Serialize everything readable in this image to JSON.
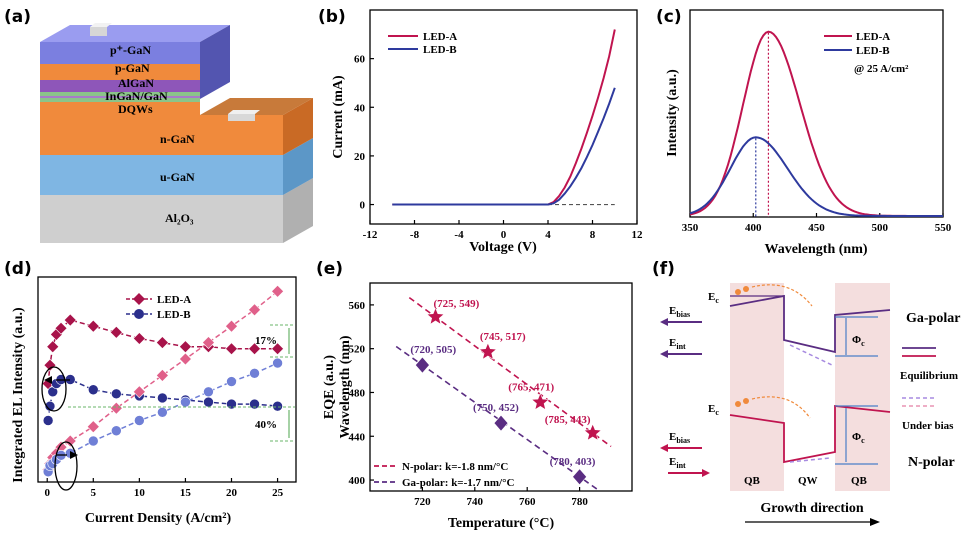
{
  "panels": {
    "a": {
      "label": "(a)",
      "layers": [
        "p⁺-GaN",
        "p-GaN",
        "AlGaN",
        "InGaN/GaN",
        "DQWs",
        "n-GaN",
        "u-GaN",
        "Al₂O₃"
      ]
    },
    "f": {
      "label": "(f)",
      "labels": {
        "ebias": "E",
        "ebias_sub": "bias",
        "eint": "E",
        "eint_sub": "int",
        "ec": "E",
        "ec_sub": "c",
        "phi": "Φ",
        "phi_sub": "c",
        "qb": "QB",
        "qw": "QW",
        "growth": "Growth direction",
        "ga_polar": "Ga-polar",
        "n_polar": "N-polar",
        "equilibrium": "Equilibrium",
        "under_bias": "Under bias"
      },
      "colors": {
        "ga_polar": "#5a2d82",
        "n_polar": "#c0144f",
        "qb_fill": "#f4dede"
      }
    }
  },
  "chart_data": [
    {
      "panel": "(b)",
      "type": "line",
      "xlabel": "Voltage (V)",
      "ylabel": "Current (mA)",
      "xlim": [
        -12,
        12
      ],
      "ylim": [
        -8,
        80
      ],
      "xticks": [
        -12,
        -8,
        -4,
        0,
        4,
        8,
        12
      ],
      "yticks": [
        0,
        20,
        40,
        60
      ],
      "series": [
        {
          "name": "LED-A",
          "color": "#c0144f",
          "x": [
            -10,
            0,
            4,
            4.5,
            5,
            5.5,
            6,
            6.5,
            7,
            7.5,
            8,
            8.5,
            9,
            9.5,
            10
          ],
          "y": [
            0,
            0,
            0,
            1,
            3.5,
            7,
            11.5,
            17,
            23,
            29.5,
            36.5,
            44,
            52,
            61,
            72
          ]
        },
        {
          "name": "LED-B",
          "color": "#2e3a9e",
          "x": [
            -10,
            0,
            4,
            4.5,
            5,
            5.5,
            6,
            6.5,
            7,
            7.5,
            8,
            8.5,
            9,
            9.5,
            10
          ],
          "y": [
            0,
            0,
            0,
            0.5,
            2,
            4.5,
            7.5,
            11,
            15,
            19.5,
            24.5,
            30,
            35.5,
            41.5,
            48
          ]
        }
      ],
      "reference_line": {
        "x": [
          4,
          10
        ],
        "y": [
          0,
          0
        ],
        "style": "dashed"
      }
    },
    {
      "panel": "(c)",
      "type": "line",
      "xlabel": "Wavelength (nm)",
      "ylabel": "Intensity (a.u.)",
      "xlim": [
        350,
        550
      ],
      "ylim": [
        0,
        1.0
      ],
      "xticks": [
        350,
        400,
        450,
        500,
        550
      ],
      "annotation": "@ 25 A/cm²",
      "series": [
        {
          "name": "LED-A",
          "color": "#c0144f",
          "peak_wavelength": 412,
          "peak_intensity": 0.89
        },
        {
          "name": "LED-B",
          "color": "#2e3a9e",
          "peak_wavelength": 402,
          "peak_intensity": 0.38
        }
      ],
      "peak_markers": [
        412,
        402
      ]
    },
    {
      "panel": "(d)",
      "type": "line",
      "xlabel": "Current Density (A/cm²)",
      "ylabel": "Integrated EL Intensity (a.u.)",
      "xlim": [
        -1,
        27
      ],
      "ylim": [
        0,
        1
      ],
      "xticks": [
        0,
        5,
        10,
        15,
        20,
        25
      ],
      "series": [
        {
          "name": "LED-A",
          "role": "EQE",
          "color": "#a8134a",
          "x": [
            0.1,
            0.3,
            0.6,
            1,
            1.5,
            2.5,
            5,
            7.5,
            10,
            12.5,
            15,
            17.5,
            20,
            22.5,
            25
          ],
          "y": [
            0.48,
            0.57,
            0.66,
            0.72,
            0.75,
            0.79,
            0.76,
            0.73,
            0.7,
            0.68,
            0.66,
            0.66,
            0.65,
            0.65,
            0.65
          ]
        },
        {
          "name": "LED-B",
          "role": "EQE",
          "color": "#2b2f8c",
          "x": [
            0.1,
            0.3,
            0.6,
            1,
            1.5,
            2.5,
            5,
            7.5,
            10,
            12.5,
            15,
            17.5,
            20,
            22.5,
            25
          ],
          "y": [
            0.3,
            0.37,
            0.44,
            0.48,
            0.5,
            0.5,
            0.45,
            0.43,
            0.42,
            0.41,
            0.4,
            0.39,
            0.38,
            0.38,
            0.37
          ]
        },
        {
          "name": "LED-A",
          "role": "EL intensity",
          "color": "#e0608a",
          "x": [
            0.1,
            0.3,
            0.6,
            1,
            1.5,
            2.5,
            5,
            7.5,
            10,
            12.5,
            15,
            17.5,
            20,
            22.5,
            25
          ],
          "y": [
            0.06,
            0.09,
            0.12,
            0.14,
            0.17,
            0.2,
            0.27,
            0.36,
            0.44,
            0.52,
            0.6,
            0.68,
            0.76,
            0.84,
            0.93
          ]
        },
        {
          "name": "LED-B",
          "role": "EL intensity",
          "color": "#6f7fd6",
          "x": [
            0.1,
            0.3,
            0.6,
            1,
            1.5,
            2.5,
            5,
            7.5,
            10,
            12.5,
            15,
            17.5,
            20,
            22.5,
            25
          ],
          "y": [
            0.05,
            0.08,
            0.09,
            0.11,
            0.13,
            0.14,
            0.2,
            0.25,
            0.3,
            0.34,
            0.39,
            0.44,
            0.49,
            0.53,
            0.58
          ]
        }
      ],
      "annotations": [
        "17%",
        "40%"
      ]
    },
    {
      "panel": "(e)",
      "type": "scatter",
      "xlabel": "Temperature (°C)",
      "ylabel": "Wavelength (nm)",
      "ylabel_left": "EQE (a.u.)",
      "xlim": [
        700,
        800
      ],
      "ylim": [
        390,
        580
      ],
      "xticks": [
        720,
        740,
        760,
        780
      ],
      "yticks": [
        400,
        440,
        480,
        520,
        560
      ],
      "series": [
        {
          "name": "N-polar: k=-1.8 nm/°C",
          "color": "#c0144f",
          "marker": "star",
          "points": [
            [
              725,
              549
            ],
            [
              745,
              517
            ],
            [
              765,
              471
            ],
            [
              785,
              443
            ]
          ],
          "labels": [
            "(725, 549)",
            "(745, 517)",
            "(765, 471)",
            "(785, 443)"
          ]
        },
        {
          "name": "Ga-polar: k=-1.7 nm/°C",
          "color": "#5a2d82",
          "marker": "diamond",
          "points": [
            [
              720,
              505
            ],
            [
              750,
              452
            ],
            [
              780,
              403
            ]
          ],
          "labels": [
            "(720, 505)",
            "(750, 452)",
            "(780, 403)"
          ]
        }
      ]
    }
  ]
}
